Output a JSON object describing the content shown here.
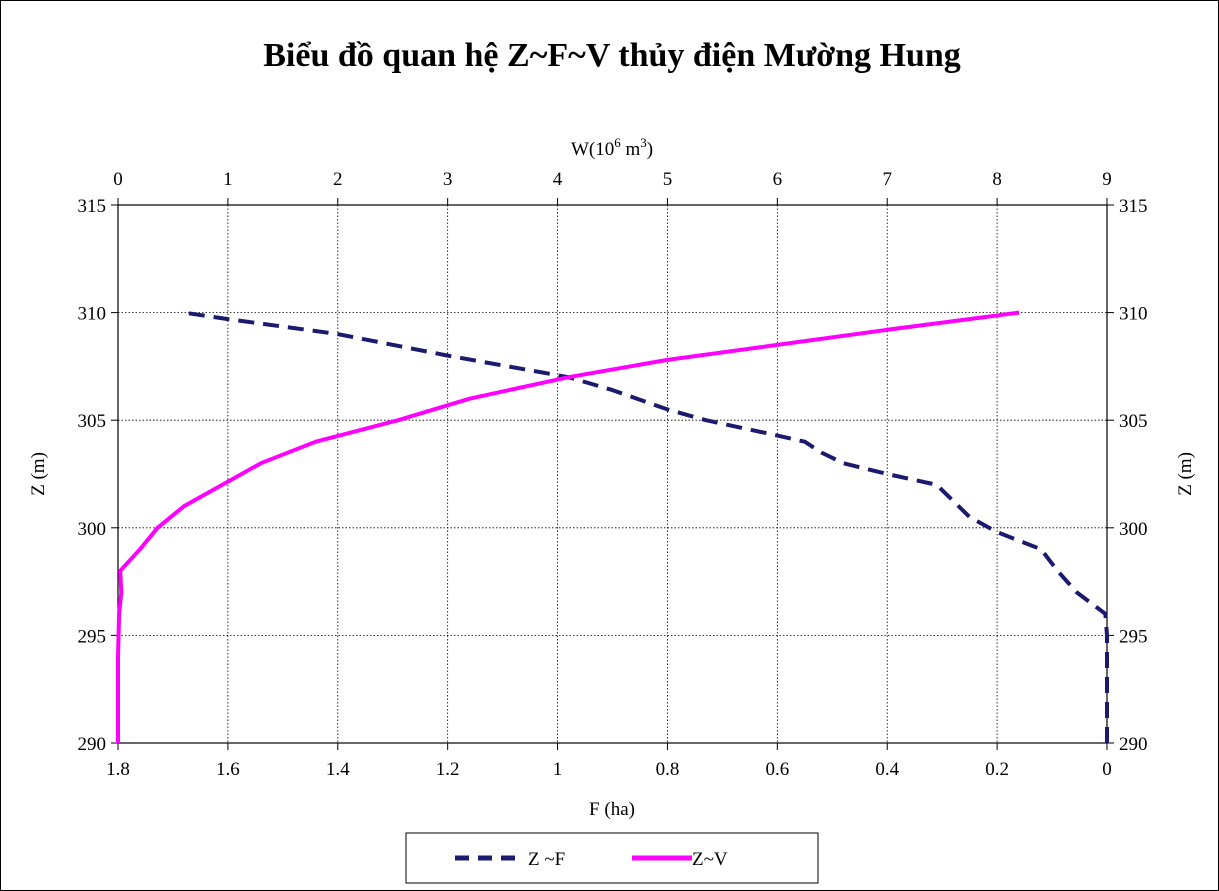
{
  "chart_data": {
    "type": "line",
    "title": "Biểu đồ quan hệ Z~F~V thủy điện Mường Hung",
    "y_axis": {
      "label": "Z (m)",
      "range": [
        290,
        315
      ],
      "ticks": [
        "290",
        "295",
        "300",
        "305",
        "310",
        "315"
      ]
    },
    "x_bottom_axis": {
      "label": "F (ha)",
      "range": [
        1.8,
        0
      ],
      "reversed": true,
      "ticks": [
        "1.8",
        "1.6",
        "1.4",
        "1.2",
        "1",
        "0.8",
        "0.6",
        "0.4",
        "0.2",
        "0"
      ]
    },
    "x_top_axis": {
      "label": "W(10",
      "label_sup": "6",
      "label_unit": " m",
      "label_sup2": "3",
      "label_end": ")",
      "range": [
        0,
        9
      ],
      "ticks": [
        "0",
        "1",
        "2",
        "3",
        "4",
        "5",
        "6",
        "7",
        "8",
        "9"
      ]
    },
    "grid": true,
    "legend_position": "bottom-center",
    "series": [
      {
        "name": "Z ~F",
        "axis": "F",
        "color": "#1a1a6e",
        "style": "dashed",
        "points": [
          [
            0.0,
            290
          ],
          [
            0.0,
            295
          ],
          [
            0.003,
            296
          ],
          [
            0.055,
            297
          ],
          [
            0.09,
            298
          ],
          [
            0.12,
            299
          ],
          [
            0.2,
            299.8
          ],
          [
            0.25,
            300.5
          ],
          [
            0.31,
            302
          ],
          [
            0.4,
            302.5
          ],
          [
            0.48,
            303
          ],
          [
            0.52,
            303.5
          ],
          [
            0.55,
            304
          ],
          [
            0.62,
            304.4
          ],
          [
            0.73,
            305
          ],
          [
            0.8,
            305.5
          ],
          [
            0.9,
            306.4
          ],
          [
            0.98,
            307
          ],
          [
            1.2,
            308
          ],
          [
            1.4,
            309
          ],
          [
            1.6,
            309.7
          ],
          [
            1.68,
            310
          ]
        ]
      },
      {
        "name": "Z~V",
        "axis": "W",
        "color": "#ff00ff",
        "style": "solid",
        "points": [
          [
            0.0,
            290
          ],
          [
            0.0,
            294
          ],
          [
            0.01,
            296
          ],
          [
            0.03,
            297
          ],
          [
            0.02,
            298
          ],
          [
            0.2,
            299
          ],
          [
            0.36,
            300
          ],
          [
            0.6,
            301
          ],
          [
            0.95,
            302
          ],
          [
            1.3,
            303
          ],
          [
            1.8,
            304
          ],
          [
            2.55,
            305
          ],
          [
            3.2,
            306
          ],
          [
            4.1,
            307
          ],
          [
            5.0,
            307.8
          ],
          [
            6.0,
            308.5
          ],
          [
            7.0,
            309.2
          ],
          [
            8.2,
            310
          ]
        ]
      }
    ]
  }
}
